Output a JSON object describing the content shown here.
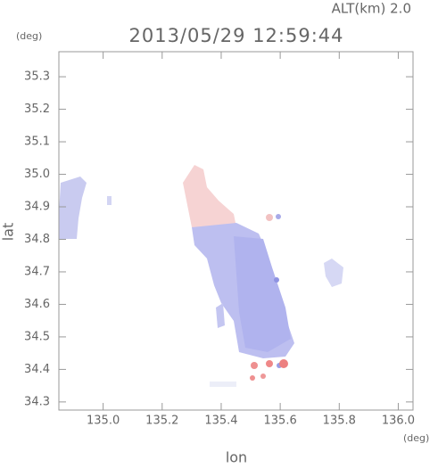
{
  "chart_data": {
    "type": "map",
    "title": "2013/05/29 12:59:44",
    "subtitle": "ALT(km)  2.0",
    "x_label": "lon",
    "y_label": "lat",
    "x_unit": "(deg)",
    "y_unit": "(deg)",
    "xlim": [
      134.85,
      136.05
    ],
    "ylim": [
      34.275,
      35.377
    ],
    "xticks": [
      {
        "value": 135,
        "label": "135.0"
      },
      135.2,
      135.4,
      135.6,
      135.8,
      {
        "value": 136,
        "label": "136.0"
      }
    ],
    "yticks": [
      34.3,
      34.4,
      34.5,
      34.6,
      34.7,
      34.8,
      34.9,
      {
        "value": 35,
        "label": "35.0"
      },
      35.1,
      35.2,
      35.3
    ],
    "frame_color": "#999999"
  }
}
